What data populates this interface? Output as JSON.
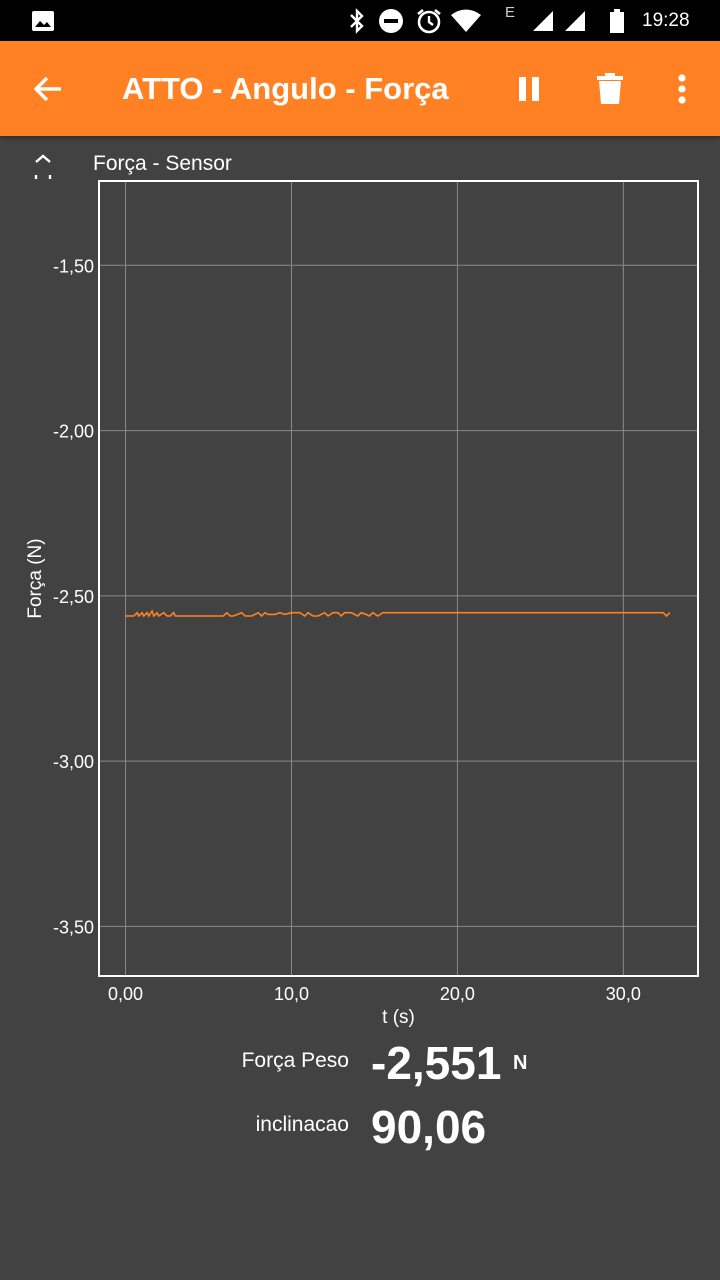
{
  "status_bar": {
    "time": "19:28",
    "network_letter": "E",
    "icons": [
      "image-icon",
      "bluetooth-icon",
      "do-not-disturb-icon",
      "alarm-icon",
      "wifi-icon",
      "signal-icon",
      "signal-icon",
      "battery-icon"
    ]
  },
  "app_bar": {
    "title": "ATTO - Angulo - Força",
    "icons": [
      "back-arrow-icon",
      "pause-icon",
      "delete-icon",
      "more-vert-icon"
    ],
    "accent_color": "#ff8124"
  },
  "chart": {
    "title": "Força - Sensor",
    "expand_icon": "expand-icon"
  },
  "chart_data": {
    "type": "line",
    "title": "Força - Sensor",
    "xlabel": "t (s)",
    "ylabel": "Força (N)",
    "xlim": [
      -1.6,
      34.5
    ],
    "ylim": [
      -3.65,
      -1.245
    ],
    "xticks": [
      0,
      10,
      20,
      30
    ],
    "xtick_labels": [
      "0,00",
      "10,0",
      "20,0",
      "30,0"
    ],
    "yticks": [
      -1.5,
      -2.0,
      -2.5,
      -3.0,
      -3.5
    ],
    "ytick_labels": [
      "-1,50",
      "-2,00",
      "-2,50",
      "-3,00",
      "-3,50"
    ],
    "grid": true,
    "series": [
      {
        "color": "#ff8124",
        "x": [
          0,
          0.5,
          0.7,
          0.8,
          1.0,
          1.1,
          1.3,
          1.4,
          1.6,
          1.7,
          1.9,
          2.0,
          2.3,
          2.5,
          2.7,
          2.9,
          3.0,
          3.1,
          5.9,
          6.1,
          6.3,
          6.5,
          7.0,
          7.2,
          7.4,
          7.6,
          8.0,
          8.2,
          8.4,
          8.6,
          9.0,
          9.3,
          9.6,
          10.0,
          10.5,
          10.8,
          11.0,
          11.3,
          11.6,
          12.0,
          12.2,
          12.5,
          12.8,
          13.0,
          13.2,
          13.6,
          14.0,
          14.2,
          14.5,
          14.7,
          14.9,
          15.2,
          15.5,
          20,
          25,
          30,
          32.4,
          32.6,
          32.8
        ],
        "y": [
          -2.561,
          -2.561,
          -2.551,
          -2.561,
          -2.551,
          -2.561,
          -2.551,
          -2.561,
          -2.546,
          -2.561,
          -2.551,
          -2.561,
          -2.551,
          -2.561,
          -2.561,
          -2.551,
          -2.561,
          -2.561,
          -2.561,
          -2.551,
          -2.561,
          -2.561,
          -2.551,
          -2.561,
          -2.561,
          -2.561,
          -2.551,
          -2.561,
          -2.551,
          -2.556,
          -2.556,
          -2.551,
          -2.556,
          -2.551,
          -2.551,
          -2.561,
          -2.551,
          -2.561,
          -2.561,
          -2.551,
          -2.561,
          -2.551,
          -2.551,
          -2.561,
          -2.551,
          -2.551,
          -2.561,
          -2.551,
          -2.556,
          -2.561,
          -2.551,
          -2.561,
          -2.551,
          -2.551,
          -2.551,
          -2.551,
          -2.551,
          -2.561,
          -2.551
        ]
      }
    ]
  },
  "readouts": [
    {
      "label": "Força Peso",
      "value": "-2,551",
      "unit": "N"
    },
    {
      "label": "inclinacao",
      "value": "90,06",
      "unit": ""
    }
  ]
}
